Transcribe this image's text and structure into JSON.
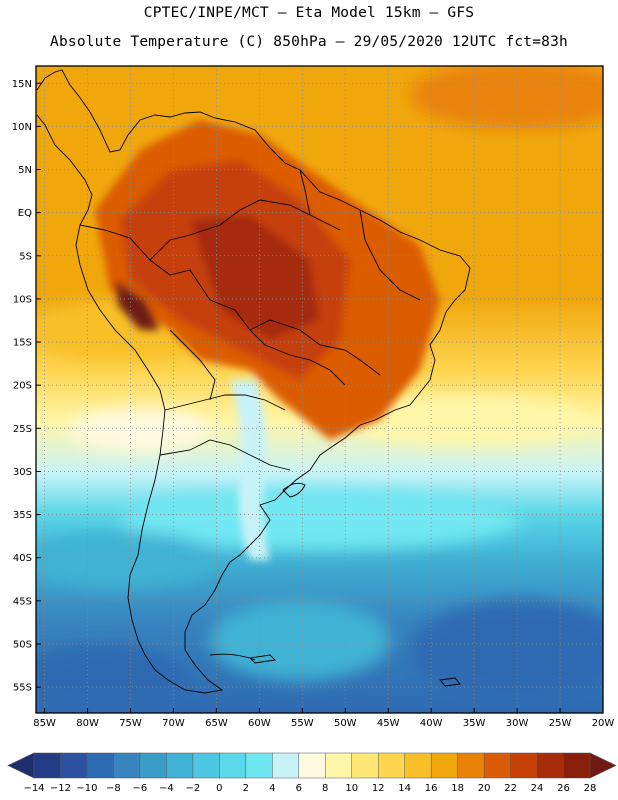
{
  "header": {
    "line1": "CPTEC/INPE/MCT –  Eta Model 15km – GFS",
    "line2": "Absolute Temperature (C) 850hPa – 29/05/2020 12UTC fct=83h"
  },
  "axes": {
    "lat_labels": [
      "15N",
      "10N",
      "5N",
      "EQ",
      "5S",
      "10S",
      "15S",
      "20S",
      "25S",
      "30S",
      "35S",
      "40S",
      "45S",
      "50S",
      "55S"
    ],
    "lon_labels": [
      "85W",
      "80W",
      "75W",
      "70W",
      "65W",
      "60W",
      "55W",
      "50W",
      "45W",
      "40W",
      "35W",
      "30W",
      "25W",
      "20W"
    ],
    "lat_values": [
      15,
      10,
      5,
      0,
      -5,
      -10,
      -15,
      -20,
      -25,
      -30,
      -35,
      -40,
      -45,
      -50,
      -55
    ],
    "lon_values": [
      -85,
      -80,
      -75,
      -70,
      -65,
      -60,
      -55,
      -50,
      -45,
      -40,
      -35,
      -30,
      -25,
      -20
    ],
    "lat_range": [
      -58,
      17
    ],
    "lon_range": [
      -86,
      -20
    ]
  },
  "colorbar": {
    "labels": [
      "-14",
      "-12",
      "-10",
      "-8",
      "-6",
      "-4",
      "-2",
      "0",
      "2",
      "4",
      "6",
      "8",
      "10",
      "12",
      "14",
      "16",
      "18",
      "20",
      "22",
      "24",
      "26",
      "28"
    ],
    "colors": [
      "#243b86",
      "#2a52a0",
      "#2e6ab2",
      "#3784bf",
      "#3b9bc9",
      "#40b2d4",
      "#4cc7df",
      "#5bd8e9",
      "#6fe7f1",
      "#c7f3f8",
      "#fff9e0",
      "#fff6a8",
      "#ffe777",
      "#fed54f",
      "#f8c028",
      "#f0a70c",
      "#e98308",
      "#dc5b06",
      "#c64008",
      "#a62c0a",
      "#8a1f0b"
    ],
    "low_color": "#1d2f6e",
    "high_color": "#701a13"
  }
}
